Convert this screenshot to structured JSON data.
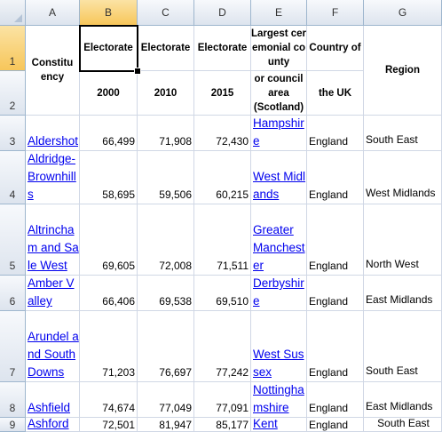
{
  "columns": [
    "A",
    "B",
    "C",
    "D",
    "E",
    "F",
    "G"
  ],
  "rows_labels": [
    "1",
    "2",
    "3",
    "4",
    "5",
    "6",
    "7",
    "8",
    "9"
  ],
  "header": {
    "a": "Constituency",
    "b1": "Electorate",
    "b2": "2000",
    "c1": "Electorate",
    "c2": "2010",
    "d1": "Electorate",
    "d2": "2015",
    "e1": "Largest ceremonial county",
    "e2": "or council area (Scotland)",
    "f1": "Country of",
    "f2": "the UK",
    "g": "Region"
  },
  "rows": [
    {
      "name": "Aldershot",
      "e2000": "66,499",
      "e2010": "71,908",
      "e2015": "72,430",
      "county": "Hampshire",
      "country": "England",
      "region": "South East"
    },
    {
      "name": "Aldridge-Brownhills",
      "e2000": "58,695",
      "e2010": "59,506",
      "e2015": "60,215",
      "county": "West Midlands",
      "country": "England",
      "region": "West Midlands"
    },
    {
      "name": "Altrincham and Sale West",
      "e2000": "69,605",
      "e2010": "72,008",
      "e2015": "71,511",
      "county": "Greater Manchester",
      "country": "England",
      "region": "North West"
    },
    {
      "name": "Amber Valley",
      "e2000": "66,406",
      "e2010": "69,538",
      "e2015": "69,510",
      "county": "Derbyshire",
      "country": "England",
      "region": "East Midlands"
    },
    {
      "name": "Arundel and South Downs",
      "e2000": "71,203",
      "e2010": "76,697",
      "e2015": "77,242",
      "county": "West Sussex",
      "country": "England",
      "region": "South East"
    },
    {
      "name": "Ashfield",
      "e2000": "74,674",
      "e2010": "77,049",
      "e2015": "77,091",
      "county": "Nottinghamshire",
      "country": "England",
      "region": "East Midlands"
    },
    {
      "name": "Ashford",
      "e2000": "72,501",
      "e2010": "81,947",
      "e2015": "85,177",
      "county": "Kent",
      "country": "England",
      "region": "South East"
    }
  ]
}
